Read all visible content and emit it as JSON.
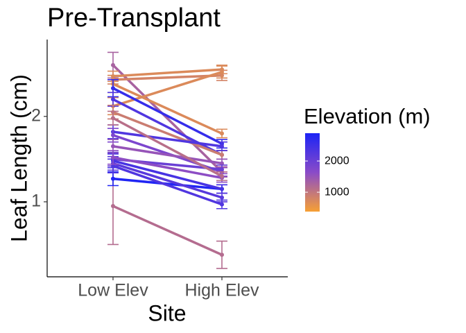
{
  "chart_data": {
    "type": "slope",
    "title": "Pre-Transplant",
    "x_label": "Site",
    "y_label": "Leaf Length (cm)",
    "categories": [
      "Low Elev",
      "High Elev"
    ],
    "ylim": [
      0.13,
      2.9
    ],
    "yticks": [
      1,
      2
    ],
    "color_title": "Elevation (m)",
    "color_lim": [
      380,
      2890
    ],
    "color_ticks": [
      1000,
      2000
    ],
    "colors": [
      "#f7a034",
      "#8a4bc8",
      "#1c24f5"
    ],
    "series": [
      {
        "elevation": 1150,
        "values": [
          0.95,
          0.38
        ],
        "errors": [
          0.45,
          0.16
        ]
      },
      {
        "elevation": 2850,
        "values": [
          1.27,
          1.15
        ],
        "errors": [
          0.08,
          0.05
        ]
      },
      {
        "elevation": 1300,
        "values": [
          2.6,
          1.35
        ],
        "errors": [
          0.15,
          0.06
        ]
      },
      {
        "elevation": 700,
        "values": [
          2.47,
          2.55
        ],
        "errors": [
          0.06,
          0.05
        ]
      },
      {
        "elevation": 800,
        "values": [
          2.43,
          2.48
        ],
        "errors": [
          0.05,
          0.06
        ]
      },
      {
        "elevation": 700,
        "values": [
          2.12,
          2.52
        ],
        "errors": [
          0.1,
          0.07
        ]
      },
      {
        "elevation": 700,
        "values": [
          2.38,
          1.8
        ],
        "errors": [
          0.1,
          0.05
        ]
      },
      {
        "elevation": 2600,
        "values": [
          2.33,
          1.68
        ],
        "errors": [
          0.1,
          0.05
        ]
      },
      {
        "elevation": 2300,
        "values": [
          2.2,
          1.55
        ],
        "errors": [
          0.08,
          0.05
        ]
      },
      {
        "elevation": 900,
        "values": [
          2.05,
          1.55
        ],
        "errors": [
          0.08,
          0.05
        ]
      },
      {
        "elevation": 2300,
        "values": [
          1.82,
          1.65
        ],
        "errors": [
          0.08,
          0.05
        ]
      },
      {
        "elevation": 1800,
        "values": [
          1.78,
          1.35
        ],
        "errors": [
          0.08,
          0.05
        ]
      },
      {
        "elevation": 1500,
        "values": [
          1.65,
          1.45
        ],
        "errors": [
          0.08,
          0.05
        ]
      },
      {
        "elevation": 2000,
        "values": [
          1.5,
          1.38
        ],
        "errors": [
          0.08,
          0.05
        ]
      },
      {
        "elevation": 2400,
        "values": [
          1.48,
          1.15
        ],
        "errors": [
          0.08,
          0.05
        ]
      },
      {
        "elevation": 2200,
        "values": [
          1.45,
          1.05
        ],
        "errors": [
          0.08,
          0.05
        ]
      },
      {
        "elevation": 2300,
        "values": [
          1.42,
          0.97
        ],
        "errors": [
          0.08,
          0.05
        ]
      },
      {
        "elevation": 1600,
        "values": [
          1.52,
          1.28
        ],
        "errors": [
          0.08,
          0.05
        ]
      },
      {
        "elevation": 1100,
        "values": [
          1.98,
          1.3
        ],
        "errors": [
          0.08,
          0.05
        ]
      }
    ]
  }
}
